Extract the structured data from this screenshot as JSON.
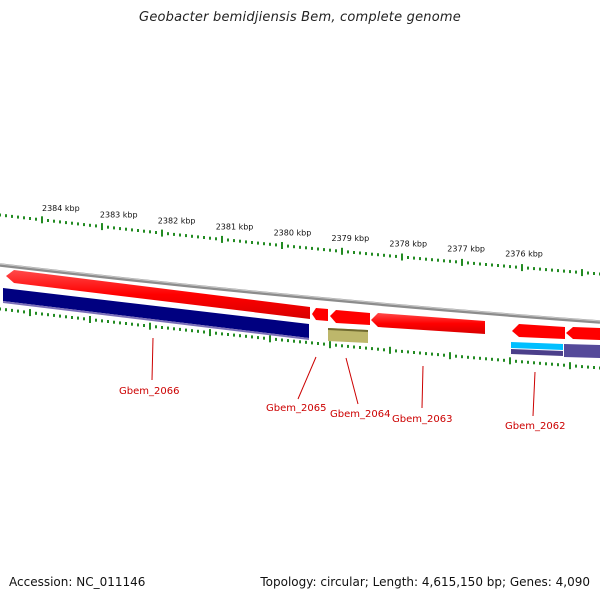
{
  "title": "Geobacter bemidjiensis Bem, complete genome",
  "footer": {
    "accession": "Accession: NC_011146",
    "summary": "Topology: circular; Length: 4,615,150 bp; Genes: 4,090"
  },
  "scale_labels": [
    "2384 kbp",
    "2383 kbp",
    "2382 kbp",
    "2381 kbp",
    "2380 kbp",
    "2379 kbp",
    "2378 kbp",
    "2377 kbp",
    "2376 kbp"
  ],
  "gene_labels": [
    "Gbem_2066",
    "Gbem_2065",
    "Gbem_2064",
    "Gbem_2063",
    "Gbem_2062"
  ],
  "colors": {
    "forward_gene": "#ff0000",
    "reverse_gene_dark": "#000080",
    "gene_khaki": "#bdb76b",
    "gene_cyan": "#00bfff",
    "gene_purple": "#4b3f8a",
    "backbone": "#909090",
    "tick": "#228b22",
    "label": "#cc0000"
  }
}
